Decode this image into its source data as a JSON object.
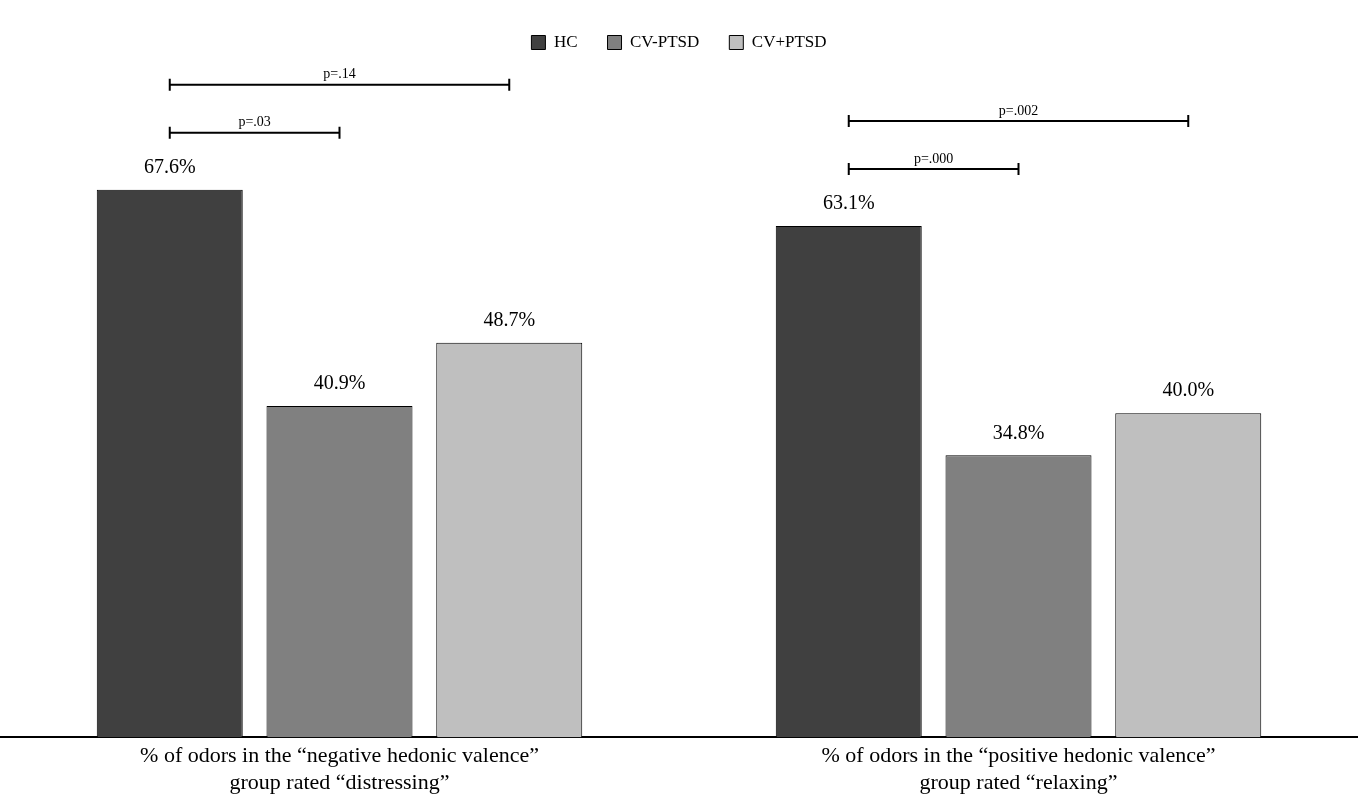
{
  "chart_data": {
    "type": "bar",
    "categories": [
      "% of odors in the “negative hedonic valence” group rated “distressing”",
      "% of odors in the “positive hedonic valence” group rated “relaxing”"
    ],
    "series": [
      {
        "name": "HC",
        "color": "#404040",
        "values": [
          67.6,
          63.1
        ],
        "value_labels": [
          "67.6%",
          "63.1%"
        ]
      },
      {
        "name": "CV-PTSD",
        "color": "#808080",
        "values": [
          40.9,
          34.8
        ],
        "value_labels": [
          "40.9%",
          "34.8%"
        ]
      },
      {
        "name": "CV+PTSD",
        "color": "#bfbfbf",
        "values": [
          48.7,
          40.0
        ],
        "value_labels": [
          "48.7%",
          "40.0%"
        ]
      }
    ],
    "annotations": [
      "p=.14",
      "p=.03",
      "p=.002",
      "p=.000"
    ],
    "legend": "top"
  }
}
